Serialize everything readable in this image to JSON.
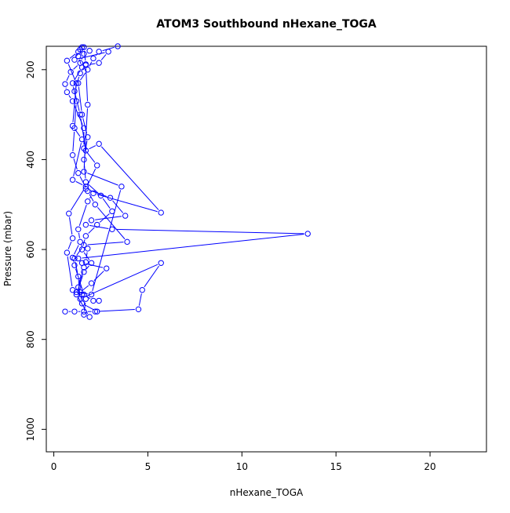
{
  "chart_data": {
    "type": "line",
    "title": "ATOM3 Southbound nHexane_TOGA",
    "xlabel": "nHexane_TOGA",
    "ylabel": "Pressure (mbar)",
    "xlim": [
      -0.4,
      23.0
    ],
    "ylim": [
      1050,
      148
    ],
    "y_reversed": true,
    "xticks": [
      0,
      5,
      10,
      15,
      20
    ],
    "yticks": [
      200,
      400,
      600,
      800,
      1000
    ],
    "grid": false,
    "legend": "none",
    "series_color": "#0000ff",
    "markers": "open-circle",
    "series": [
      {
        "values": [
          [
            1.9,
            750
          ],
          [
            1.2,
            700
          ],
          [
            1.6,
            650
          ],
          [
            2.0,
            630
          ],
          [
            1.5,
            600
          ],
          [
            1.7,
            570
          ],
          [
            2.3,
            545
          ],
          [
            3.1,
            515
          ],
          [
            2.5,
            480
          ],
          [
            1.7,
            450
          ],
          [
            1.6,
            400
          ],
          [
            1.8,
            350
          ],
          [
            1.5,
            300
          ],
          [
            1.3,
            230
          ],
          [
            1.8,
            200
          ],
          [
            2.1,
            175
          ],
          [
            2.4,
            160
          ],
          [
            3.4,
            148
          ]
        ]
      },
      {
        "values": [
          [
            0.6,
            738
          ],
          [
            1.1,
            738
          ],
          [
            1.6,
            738
          ],
          [
            2.2,
            738
          ],
          [
            4.5,
            733
          ],
          [
            4.7,
            690
          ],
          [
            5.7,
            630
          ],
          [
            1.4,
            710
          ],
          [
            1.3,
            660
          ],
          [
            1.1,
            620
          ],
          [
            1.6,
            590
          ],
          [
            3.9,
            583
          ],
          [
            2.2,
            500
          ],
          [
            1.8,
            470
          ],
          [
            1.3,
            430
          ],
          [
            1.0,
            390
          ],
          [
            1.1,
            330
          ],
          [
            1.2,
            270
          ],
          [
            1.0,
            230
          ],
          [
            1.5,
            195
          ],
          [
            1.3,
            170
          ],
          [
            1.5,
            150
          ]
        ]
      },
      {
        "values": [
          [
            2.3,
            738
          ],
          [
            1.5,
            720
          ],
          [
            1.4,
            695
          ],
          [
            2.0,
            675
          ],
          [
            2.8,
            642
          ],
          [
            1.5,
            630
          ],
          [
            1.3,
            620
          ],
          [
            13.5,
            565
          ],
          [
            3.1,
            555
          ],
          [
            1.7,
            545
          ],
          [
            2.0,
            535
          ],
          [
            3.8,
            525
          ],
          [
            3.0,
            485
          ],
          [
            1.7,
            465
          ],
          [
            2.3,
            413
          ],
          [
            1.6,
            375
          ],
          [
            1.6,
            330
          ],
          [
            1.0,
            270
          ],
          [
            0.7,
            250
          ],
          [
            0.6,
            232
          ],
          [
            0.9,
            205
          ],
          [
            1.4,
            185
          ],
          [
            1.6,
            165
          ],
          [
            1.9,
            158
          ]
        ]
      },
      {
        "values": [
          [
            1.6,
            745
          ],
          [
            1.7,
            710
          ],
          [
            1.5,
            700
          ],
          [
            1.0,
            690
          ],
          [
            0.7,
            607
          ],
          [
            1.0,
            575
          ],
          [
            0.8,
            520
          ],
          [
            1.7,
            460
          ],
          [
            1.0,
            445
          ],
          [
            1.5,
            355
          ],
          [
            1.0,
            325
          ],
          [
            1.2,
            230
          ],
          [
            0.7,
            180
          ],
          [
            1.3,
            160
          ]
        ]
      },
      {
        "values": [
          [
            2.4,
            714
          ],
          [
            2.1,
            714
          ],
          [
            1.6,
            700
          ],
          [
            1.1,
            635
          ],
          [
            1.0,
            618
          ],
          [
            1.4,
            583
          ],
          [
            1.3,
            555
          ],
          [
            1.8,
            493
          ],
          [
            2.1,
            475
          ],
          [
            5.7,
            518
          ],
          [
            2.4,
            365
          ],
          [
            1.7,
            380
          ],
          [
            1.4,
            300
          ],
          [
            1.1,
            248
          ],
          [
            1.4,
            208
          ],
          [
            1.7,
            188
          ],
          [
            1.6,
            150
          ]
        ]
      },
      {
        "values": [
          [
            1.8,
            598
          ],
          [
            1.7,
            628
          ],
          [
            1.6,
            640
          ],
          [
            1.3,
            684
          ],
          [
            1.2,
            695
          ],
          [
            2.0,
            700
          ],
          [
            3.6,
            460
          ],
          [
            1.6,
            427
          ],
          [
            1.8,
            278
          ],
          [
            1.7,
            190
          ],
          [
            2.4,
            185
          ],
          [
            2.9,
            160
          ],
          [
            1.1,
            178
          ],
          [
            1.4,
            155
          ]
        ]
      }
    ]
  }
}
